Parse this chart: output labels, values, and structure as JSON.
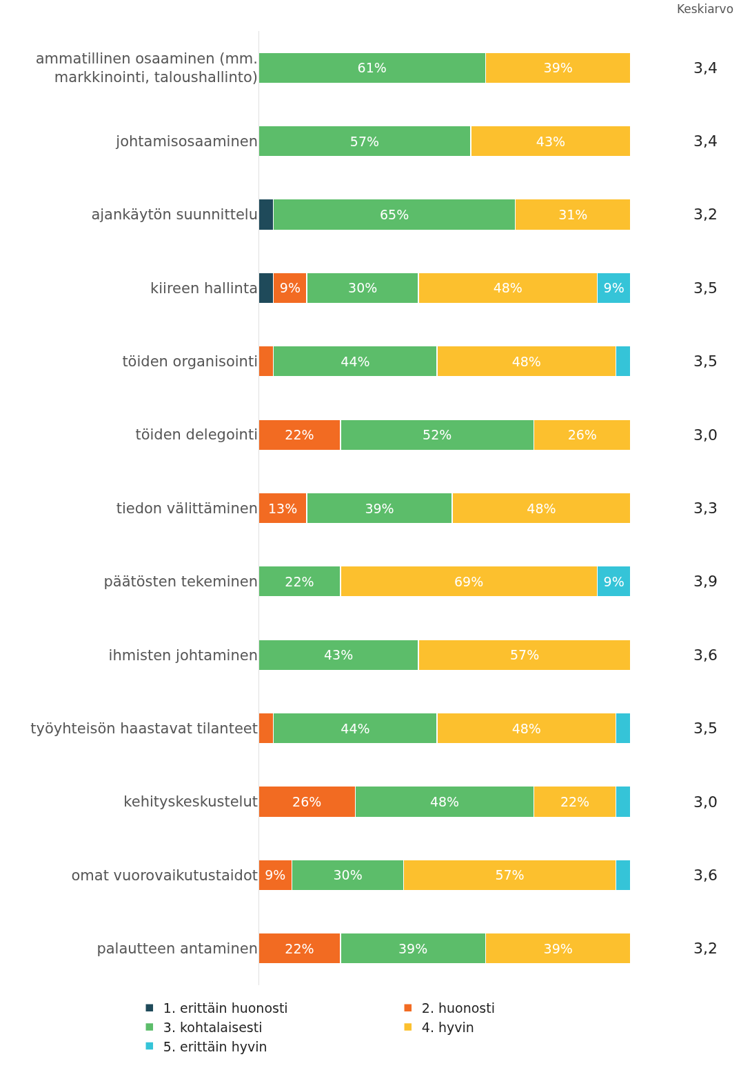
{
  "chart_data": {
    "type": "bar",
    "orientation": "horizontal",
    "stacked": true,
    "xlim": [
      0,
      100
    ],
    "tick_labels": "y",
    "legend": "bottom",
    "categories": [
      "ammatillinen osaaminen (mm.\nmarkkinointi, taloushallinto)",
      "johtamisosaaminen",
      "ajankäytön suunnittelu",
      "kiireen hallinta",
      "töiden organisointi",
      "töiden delegointi",
      "tiedon välittäminen",
      "päätösten tekeminen",
      "ihmisten johtaminen",
      "työyhteisön haastavat tilanteet",
      "kehityskeskustelut",
      "omat vuorovaikutustaidot",
      "palautteen antaminen"
    ],
    "series": [
      {
        "name": "1. erittäin huonosti",
        "color": "#1f4a5a",
        "values": [
          null,
          null,
          4,
          4,
          null,
          null,
          null,
          null,
          null,
          null,
          null,
          null,
          null
        ],
        "value_labels": [
          null,
          null,
          null,
          null,
          null,
          null,
          null,
          null,
          null,
          null,
          null,
          null,
          null
        ]
      },
      {
        "name": "2. huonosti",
        "color": "#f26b22",
        "values": [
          null,
          null,
          null,
          9,
          4,
          22,
          13,
          null,
          null,
          4,
          26,
          9,
          22
        ],
        "value_labels": [
          null,
          null,
          null,
          "9%",
          null,
          "22%",
          "13%",
          null,
          null,
          null,
          "26%",
          "9%",
          "22%"
        ]
      },
      {
        "name": "3. kohtalaisesti",
        "color": "#5cbd6a",
        "values": [
          61,
          57,
          65,
          30,
          44,
          52,
          39,
          22,
          43,
          44,
          48,
          30,
          39
        ],
        "value_labels": [
          "61%",
          "57%",
          "65%",
          "30%",
          "44%",
          "52%",
          "39%",
          "22%",
          "43%",
          "44%",
          "48%",
          "30%",
          "39%"
        ]
      },
      {
        "name": "4. hyvin",
        "color": "#fcc02e",
        "values": [
          39,
          43,
          31,
          48,
          48,
          26,
          48,
          69,
          57,
          48,
          22,
          57,
          39
        ],
        "value_labels": [
          "39%",
          "43%",
          "31%",
          "48%",
          "48%",
          "26%",
          "48%",
          "69%",
          "57%",
          "48%",
          "22%",
          "57%",
          "39%"
        ]
      },
      {
        "name": "5. erittäin hyvin",
        "color": "#35c4d8",
        "values": [
          null,
          null,
          null,
          9,
          4,
          null,
          null,
          9,
          null,
          4,
          4,
          4,
          null
        ],
        "value_labels": [
          null,
          null,
          null,
          "9%",
          null,
          null,
          null,
          "9%",
          null,
          null,
          null,
          null,
          null
        ]
      }
    ],
    "annotations": [
      "Keskiarvo",
      "3,4",
      "3,4",
      "3,2",
      "3,5",
      "3,5",
      "3,0",
      "3,3",
      "3,9",
      "3,6",
      "3,5",
      "3,0",
      "3,6",
      "3,2"
    ]
  }
}
